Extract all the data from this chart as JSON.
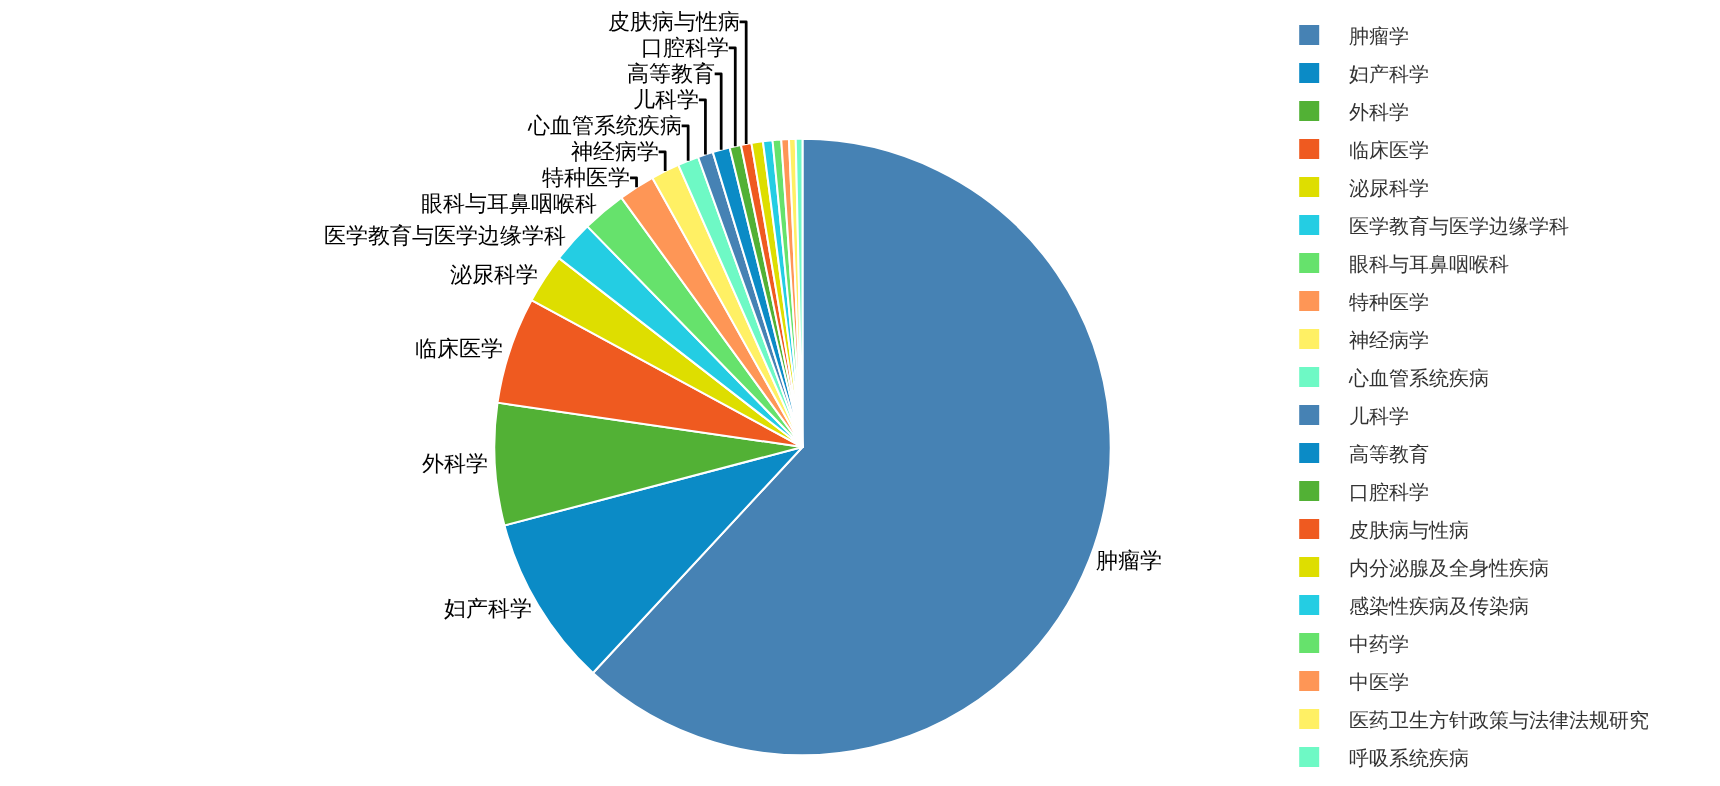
{
  "chart_data": {
    "type": "pie",
    "categories": [
      "肿瘤学",
      "妇产科学",
      "外科学",
      "临床医学",
      "泌尿科学",
      "医学教育与医学边缘学科",
      "眼科与耳鼻咽喉科",
      "特种医学",
      "神经病学",
      "心血管系统疾病",
      "儿科学",
      "高等教育",
      "口腔科学",
      "皮肤病与性病",
      "内分泌腺及全身性疾病",
      "感染性疾病及传染病",
      "中药学",
      "中医学",
      "医药卫生方针政策与法律法规研究",
      "呼吸系统疾病"
    ],
    "values": [
      61.9,
      9.0,
      6.4,
      5.6,
      2.6,
      2.2,
      2.3,
      1.9,
      1.5,
      1.1,
      0.8,
      0.9,
      0.6,
      0.55,
      0.6,
      0.5,
      0.45,
      0.4,
      0.35,
      0.35
    ],
    "colors": [
      "#4682b4",
      "#0b8bc6",
      "#52b135",
      "#ef5a20",
      "#dede00",
      "#24cde3",
      "#66e26c",
      "#fe9656",
      "#fff064",
      "#6ef9c5",
      "#4682b4",
      "#0b8bc6",
      "#52b135",
      "#ef5a20",
      "#dede00",
      "#24cde3",
      "#66e26c",
      "#fe9656",
      "#fff064",
      "#6ef9c5"
    ],
    "value_labels": [
      "肿瘤学",
      "妇产科学",
      "外科学",
      "临床医学",
      "泌尿科学",
      "医学教育与医学边缘学科",
      "眼科与耳鼻咽喉科",
      "特种医学",
      "神经病学",
      "心血管系统疾病",
      "儿科学",
      "高等教育",
      "口腔科学",
      "皮肤病与性病",
      null,
      null,
      null,
      null,
      null,
      null
    ],
    "legend": "right"
  }
}
